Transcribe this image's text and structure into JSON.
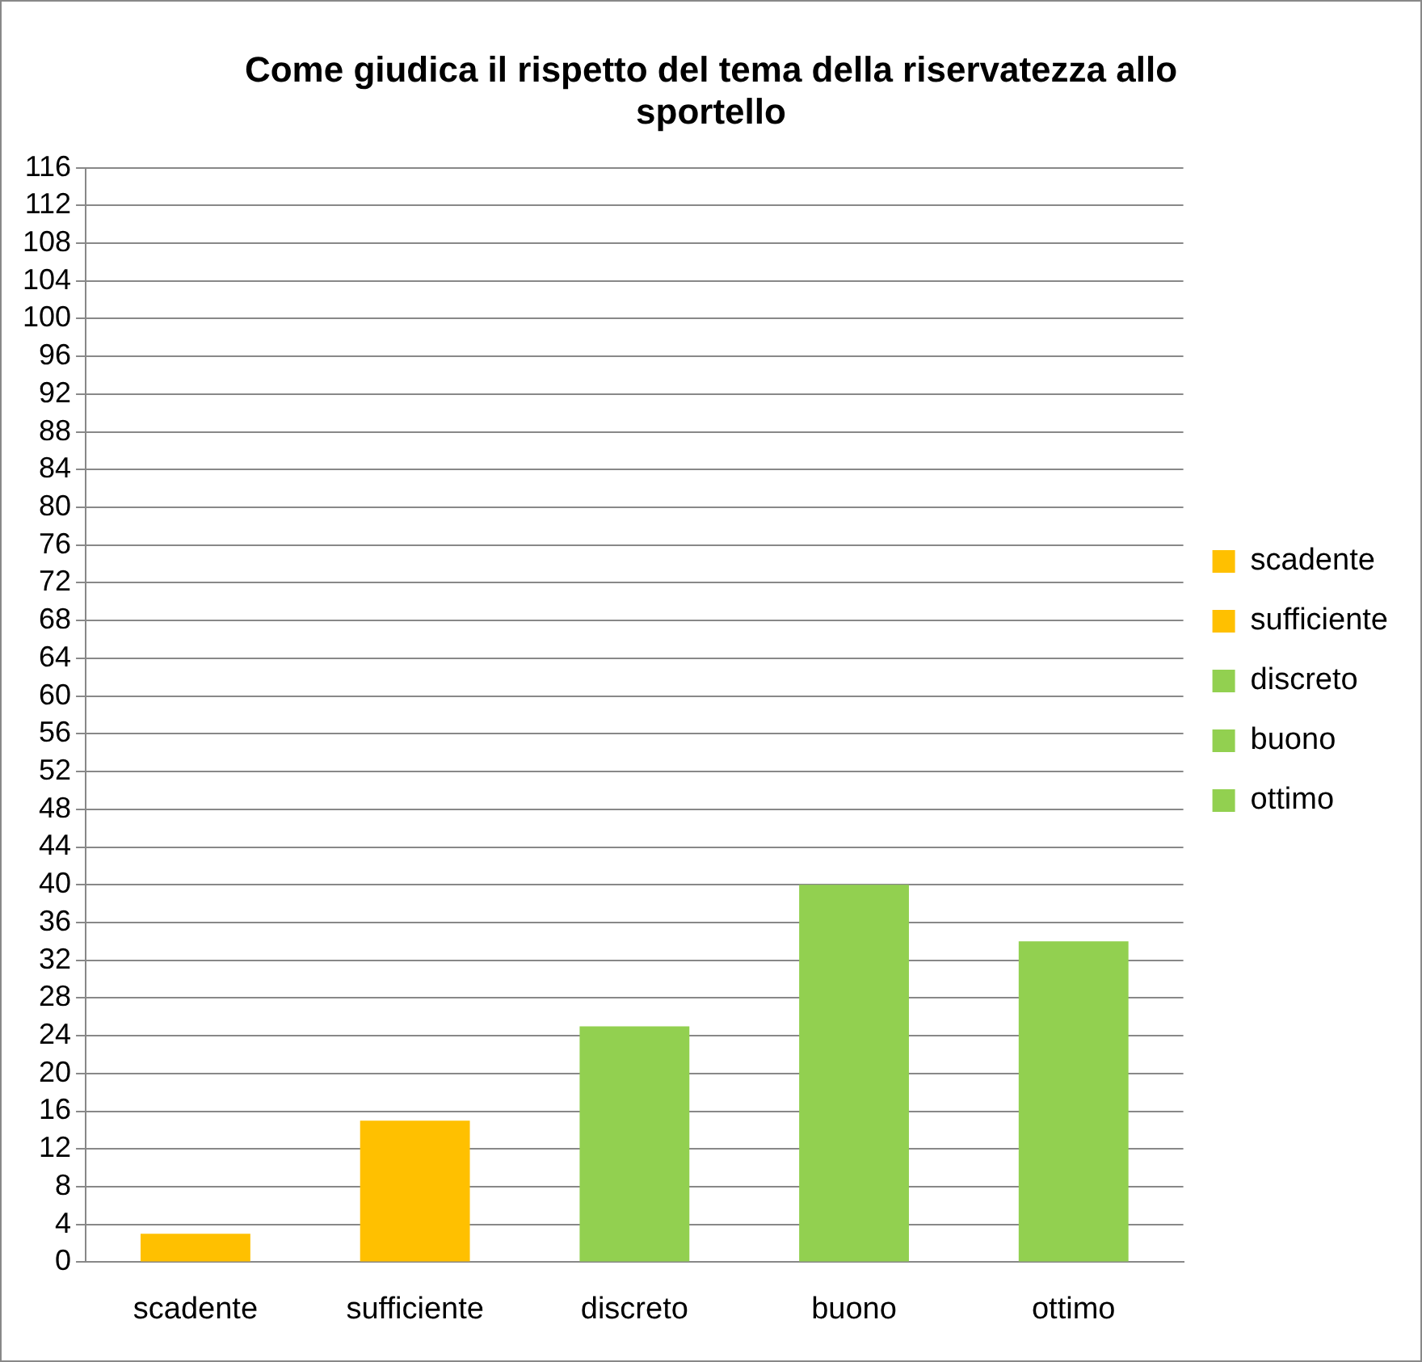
{
  "chart_data": {
    "type": "bar",
    "title": "Come giudica il rispetto del tema della riservatezza allo sportello",
    "categories": [
      "scadente",
      "sufficiente",
      "discreto",
      "buono",
      "ottimo"
    ],
    "series": [
      {
        "name": "scadente",
        "color": "#ffc000",
        "values": [
          3,
          null,
          null,
          null,
          null
        ]
      },
      {
        "name": "sufficiente",
        "color": "#ffc000",
        "values": [
          null,
          15,
          null,
          null,
          null
        ]
      },
      {
        "name": "discreto",
        "color": "#92d050",
        "values": [
          null,
          null,
          25,
          null,
          null
        ]
      },
      {
        "name": "buono",
        "color": "#92d050",
        "values": [
          null,
          null,
          null,
          40,
          null
        ]
      },
      {
        "name": "ottimo",
        "color": "#92d050",
        "values": [
          null,
          null,
          null,
          null,
          34
        ]
      }
    ],
    "ylim": [
      0,
      116
    ],
    "yticks": [
      0,
      4,
      8,
      12,
      16,
      20,
      24,
      28,
      32,
      36,
      40,
      44,
      48,
      52,
      56,
      60,
      64,
      68,
      72,
      76,
      80,
      84,
      88,
      92,
      96,
      100,
      104,
      108,
      112,
      116
    ],
    "grid": "y",
    "legend": "right"
  }
}
